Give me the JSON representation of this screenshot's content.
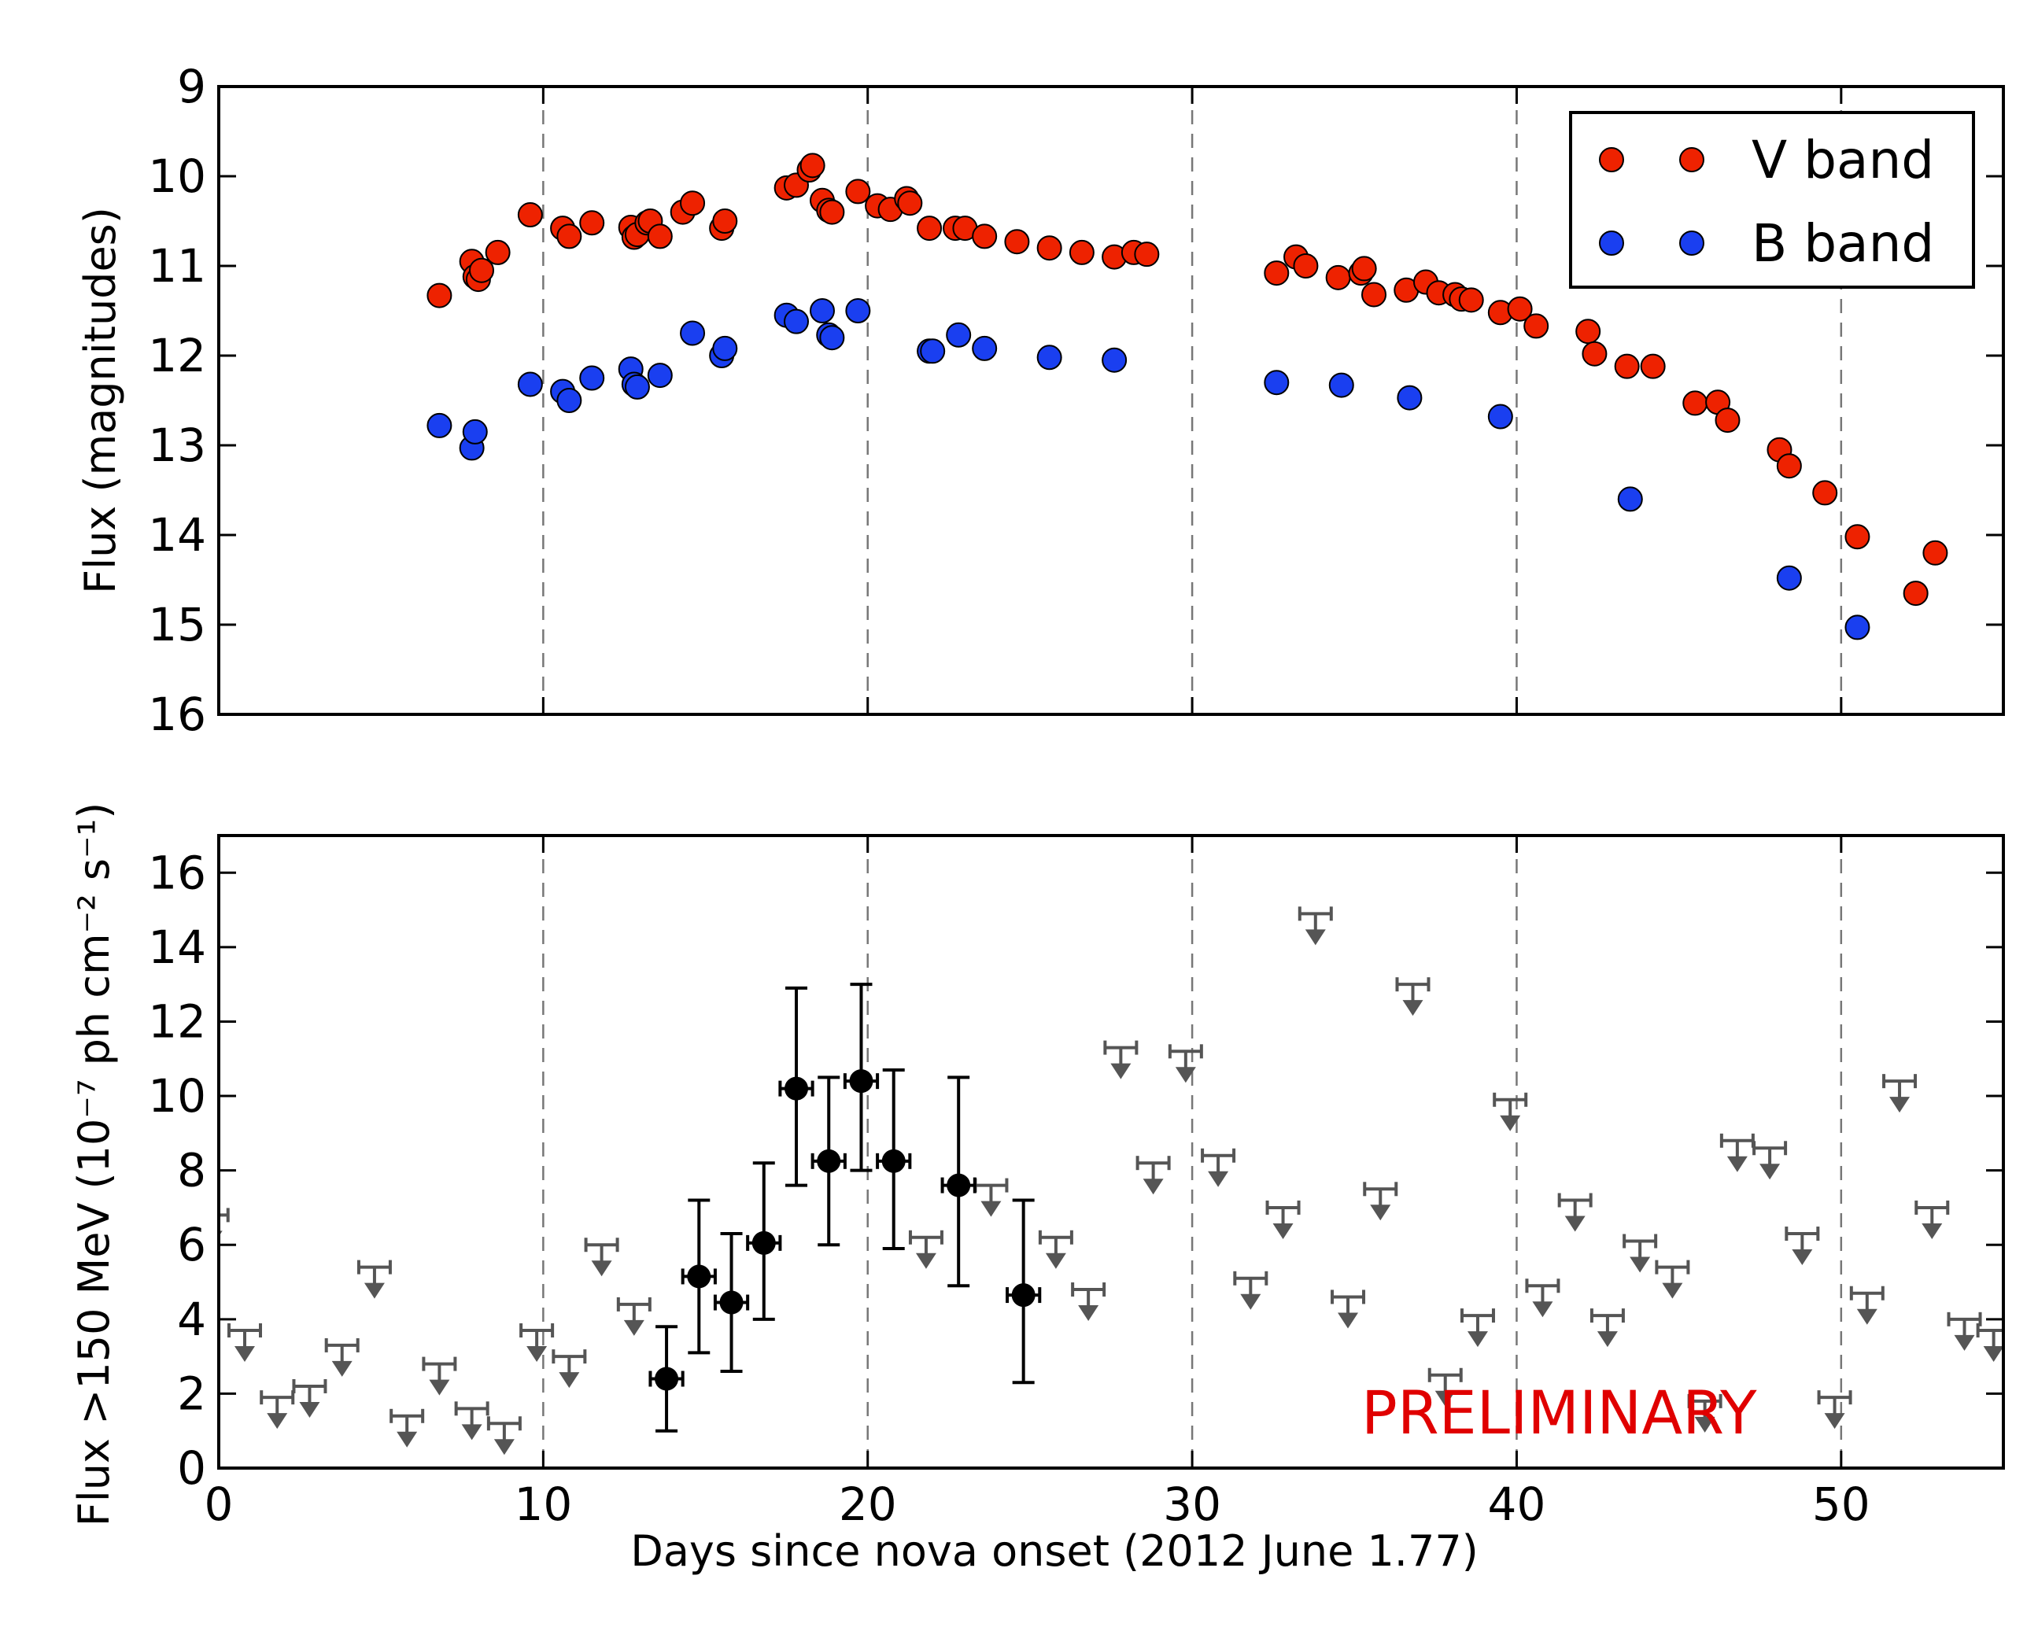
{
  "chart_data": [
    {
      "type": "scatter",
      "panel": "optical",
      "ylabel": "Flux (magnitudes)",
      "xlim": [
        0,
        55
      ],
      "ylim": [
        9,
        16
      ],
      "y_inverted": true,
      "yticks": [
        9,
        10,
        11,
        12,
        13,
        14,
        15,
        16
      ],
      "xticks": [
        0,
        10,
        20,
        30,
        40,
        50
      ],
      "show_xtick_labels": false,
      "vlines": [
        10,
        20,
        30,
        40,
        50
      ],
      "legend": {
        "position": "top-right",
        "entries": [
          "V band",
          "B band"
        ]
      },
      "series": [
        {
          "name": "V band",
          "color": "#ee2200",
          "points": [
            [
              6.8,
              11.33
            ],
            [
              7.8,
              10.95
            ],
            [
              7.9,
              11.12
            ],
            [
              8.0,
              11.15
            ],
            [
              8.1,
              11.05
            ],
            [
              8.6,
              10.85
            ],
            [
              9.6,
              10.43
            ],
            [
              10.6,
              10.58
            ],
            [
              10.8,
              10.67
            ],
            [
              11.5,
              10.52
            ],
            [
              12.7,
              10.57
            ],
            [
              12.8,
              10.68
            ],
            [
              12.9,
              10.65
            ],
            [
              13.2,
              10.52
            ],
            [
              13.3,
              10.5
            ],
            [
              13.6,
              10.67
            ],
            [
              14.3,
              10.4
            ],
            [
              14.6,
              10.3
            ],
            [
              15.5,
              10.58
            ],
            [
              15.6,
              10.5
            ],
            [
              17.5,
              10.13
            ],
            [
              17.8,
              10.1
            ],
            [
              18.2,
              9.93
            ],
            [
              18.3,
              9.88
            ],
            [
              18.6,
              10.27
            ],
            [
              18.8,
              10.38
            ],
            [
              18.9,
              10.4
            ],
            [
              19.7,
              10.17
            ],
            [
              20.3,
              10.33
            ],
            [
              20.7,
              10.37
            ],
            [
              21.2,
              10.25
            ],
            [
              21.3,
              10.3
            ],
            [
              21.9,
              10.58
            ],
            [
              22.7,
              10.58
            ],
            [
              23.0,
              10.58
            ],
            [
              23.6,
              10.67
            ],
            [
              24.6,
              10.73
            ],
            [
              25.6,
              10.8
            ],
            [
              26.6,
              10.85
            ],
            [
              27.6,
              10.9
            ],
            [
              28.2,
              10.85
            ],
            [
              28.6,
              10.87
            ],
            [
              32.6,
              11.08
            ],
            [
              33.2,
              10.9
            ],
            [
              33.5,
              11.0
            ],
            [
              34.5,
              11.13
            ],
            [
              35.2,
              11.08
            ],
            [
              35.3,
              11.03
            ],
            [
              35.6,
              11.32
            ],
            [
              36.6,
              11.27
            ],
            [
              37.2,
              11.18
            ],
            [
              37.6,
              11.3
            ],
            [
              38.1,
              11.32
            ],
            [
              38.3,
              11.37
            ],
            [
              38.6,
              11.38
            ],
            [
              39.5,
              11.52
            ],
            [
              40.1,
              11.48
            ],
            [
              40.6,
              11.67
            ],
            [
              42.2,
              11.73
            ],
            [
              42.4,
              11.98
            ],
            [
              43.4,
              12.12
            ],
            [
              44.2,
              12.12
            ],
            [
              45.5,
              12.53
            ],
            [
              46.2,
              12.52
            ],
            [
              46.5,
              12.72
            ],
            [
              48.1,
              13.05
            ],
            [
              48.4,
              13.23
            ],
            [
              49.5,
              13.53
            ],
            [
              50.5,
              14.02
            ],
            [
              52.3,
              14.65
            ],
            [
              52.9,
              14.2
            ]
          ]
        },
        {
          "name": "B band",
          "color": "#1a3ff0",
          "points": [
            [
              6.8,
              12.78
            ],
            [
              7.8,
              13.03
            ],
            [
              7.9,
              12.85
            ],
            [
              9.6,
              12.32
            ],
            [
              10.6,
              12.4
            ],
            [
              10.8,
              12.5
            ],
            [
              11.5,
              12.25
            ],
            [
              12.7,
              12.15
            ],
            [
              12.8,
              12.32
            ],
            [
              12.9,
              12.35
            ],
            [
              13.6,
              12.22
            ],
            [
              14.6,
              11.75
            ],
            [
              15.5,
              12.0
            ],
            [
              15.6,
              11.92
            ],
            [
              17.5,
              11.55
            ],
            [
              17.8,
              11.62
            ],
            [
              18.6,
              11.5
            ],
            [
              18.8,
              11.77
            ],
            [
              18.9,
              11.8
            ],
            [
              19.7,
              11.5
            ],
            [
              21.9,
              11.95
            ],
            [
              22.0,
              11.95
            ],
            [
              22.8,
              11.77
            ],
            [
              23.6,
              11.92
            ],
            [
              25.6,
              12.02
            ],
            [
              27.6,
              12.05
            ],
            [
              32.6,
              12.3
            ],
            [
              34.6,
              12.33
            ],
            [
              36.7,
              12.47
            ],
            [
              39.5,
              12.68
            ],
            [
              43.5,
              13.6
            ],
            [
              48.4,
              14.48
            ],
            [
              50.5,
              15.03
            ]
          ]
        }
      ]
    },
    {
      "type": "scatter",
      "panel": "gamma-ray",
      "xlabel": "Days since nova onset (2012 June 1.77)",
      "ylabel": "Flux >150 MeV (10⁻⁷ ph cm⁻² s⁻¹)",
      "xlim": [
        0,
        55
      ],
      "ylim": [
        0,
        17
      ],
      "yticks": [
        0,
        2,
        4,
        6,
        8,
        10,
        12,
        14,
        16
      ],
      "xticks": [
        0,
        10,
        20,
        30,
        40,
        50
      ],
      "vlines": [
        10,
        20,
        30,
        40,
        50
      ],
      "annotation": "PRELIMINARY",
      "detections": [
        {
          "x": 13.8,
          "y": 2.4,
          "ylow": 1.0,
          "yhigh": 3.8
        },
        {
          "x": 14.8,
          "y": 5.15,
          "ylow": 3.1,
          "yhigh": 7.2
        },
        {
          "x": 15.8,
          "y": 4.45,
          "ylow": 2.6,
          "yhigh": 6.3
        },
        {
          "x": 16.8,
          "y": 6.05,
          "ylow": 4.0,
          "yhigh": 8.2
        },
        {
          "x": 17.8,
          "y": 10.2,
          "ylow": 7.6,
          "yhigh": 12.9
        },
        {
          "x": 18.8,
          "y": 8.25,
          "ylow": 6.0,
          "yhigh": 10.5
        },
        {
          "x": 19.8,
          "y": 10.4,
          "ylow": 8.0,
          "yhigh": 13.0
        },
        {
          "x": 20.8,
          "y": 8.25,
          "ylow": 5.9,
          "yhigh": 10.7
        },
        {
          "x": 22.8,
          "y": 7.6,
          "ylow": 4.9,
          "yhigh": 10.5
        },
        {
          "x": 24.8,
          "y": 4.65,
          "ylow": 2.3,
          "yhigh": 7.2
        }
      ],
      "upper_limits": [
        {
          "x": -0.2,
          "y": 6.8
        },
        {
          "x": 0.8,
          "y": 3.7
        },
        {
          "x": 1.8,
          "y": 1.9
        },
        {
          "x": 2.8,
          "y": 2.2
        },
        {
          "x": 3.8,
          "y": 3.3
        },
        {
          "x": 4.8,
          "y": 5.4
        },
        {
          "x": 5.8,
          "y": 1.4
        },
        {
          "x": 6.8,
          "y": 2.8
        },
        {
          "x": 7.8,
          "y": 1.6
        },
        {
          "x": 8.8,
          "y": 1.2
        },
        {
          "x": 9.8,
          "y": 3.7
        },
        {
          "x": 10.8,
          "y": 3.0
        },
        {
          "x": 11.8,
          "y": 6.0
        },
        {
          "x": 12.8,
          "y": 4.4
        },
        {
          "x": 21.8,
          "y": 6.2
        },
        {
          "x": 23.8,
          "y": 7.6
        },
        {
          "x": 25.8,
          "y": 6.2
        },
        {
          "x": 26.8,
          "y": 4.8
        },
        {
          "x": 27.8,
          "y": 11.3
        },
        {
          "x": 28.8,
          "y": 8.2
        },
        {
          "x": 29.8,
          "y": 11.2
        },
        {
          "x": 30.8,
          "y": 8.4
        },
        {
          "x": 31.8,
          "y": 5.1
        },
        {
          "x": 32.8,
          "y": 7.0
        },
        {
          "x": 33.8,
          "y": 14.9
        },
        {
          "x": 34.8,
          "y": 4.6
        },
        {
          "x": 35.8,
          "y": 7.5
        },
        {
          "x": 36.8,
          "y": 13.0
        },
        {
          "x": 37.8,
          "y": 2.5
        },
        {
          "x": 38.8,
          "y": 4.1
        },
        {
          "x": 39.8,
          "y": 9.9
        },
        {
          "x": 40.8,
          "y": 4.9
        },
        {
          "x": 41.8,
          "y": 7.2
        },
        {
          "x": 42.8,
          "y": 4.1
        },
        {
          "x": 43.8,
          "y": 6.1
        },
        {
          "x": 44.8,
          "y": 5.4
        },
        {
          "x": 45.8,
          "y": 1.8
        },
        {
          "x": 46.8,
          "y": 8.8
        },
        {
          "x": 47.8,
          "y": 8.6
        },
        {
          "x": 48.8,
          "y": 6.3
        },
        {
          "x": 49.8,
          "y": 1.9
        },
        {
          "x": 50.8,
          "y": 4.7
        },
        {
          "x": 51.8,
          "y": 10.4
        },
        {
          "x": 52.8,
          "y": 7.0
        },
        {
          "x": 53.8,
          "y": 4.0
        },
        {
          "x": 54.7,
          "y": 3.7
        }
      ]
    }
  ]
}
